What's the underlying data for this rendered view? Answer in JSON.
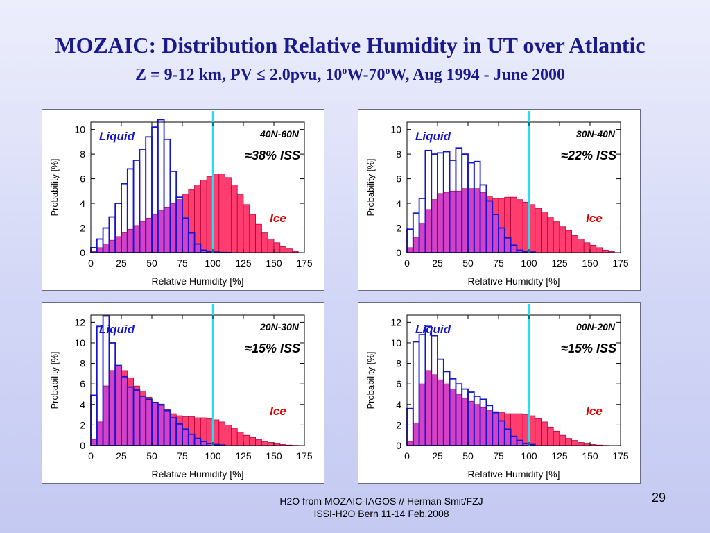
{
  "slide": {
    "title": "MOZAIC: Distribution Relative Humidity in UT over Atlantic",
    "subtitle_parts": {
      "a": "Z = 9-12 km, PV ≤ 2.0pvu, 10",
      "deg1": "o",
      "b": "W-70",
      "deg2": "o",
      "c": "W, Aug 1994 - June 2000"
    },
    "footer_line1": "H2O from MOZAIC-IAGOS // Herman Smit/FZJ",
    "footer_line2": "ISSI-H2O Bern 11-14 Feb.2008",
    "page_number": "29"
  },
  "colors": {
    "liquid_outline": "#1515cc",
    "ice_fill": "#ff3d6e",
    "overlap_fill": "#d640c4",
    "ice_edge": "#b0003a",
    "threshold_line": "#22e0f0",
    "label_liquid": "#1515cc",
    "label_ice": "#e00000"
  },
  "chart_data": [
    {
      "type": "bar",
      "region": "40N-60N",
      "iss_label": "≈38% ISS",
      "liquid_label": "Liquid",
      "ice_label": "Ice",
      "xlabel": "Relative Humidity [%]",
      "ylabel": "Probability [%]",
      "xlim": [
        0,
        175
      ],
      "ylim": [
        0,
        10.6
      ],
      "x_ticks": [
        0,
        25,
        50,
        75,
        100,
        125,
        150,
        175
      ],
      "y_ticks": [
        0,
        2,
        4,
        6,
        8,
        10
      ],
      "threshold_x": 100,
      "bin_width": 5,
      "series": [
        {
          "name": "Liquid",
          "values": [
            0.4,
            1.1,
            2.0,
            2.9,
            4.0,
            5.6,
            6.8,
            7.5,
            8.4,
            9.4,
            10.2,
            10.8,
            9.2,
            6.6,
            4.5,
            2.8,
            1.6,
            0.7,
            0.2,
            0.1,
            0.05,
            0.02,
            0.01,
            0,
            0,
            0,
            0,
            0,
            0,
            0,
            0,
            0,
            0,
            0,
            0
          ]
        },
        {
          "name": "Ice",
          "values": [
            0.1,
            0.4,
            0.7,
            1.0,
            1.3,
            1.6,
            1.9,
            2.2,
            2.5,
            2.8,
            3.1,
            3.4,
            3.7,
            4.0,
            4.3,
            4.7,
            5.1,
            5.5,
            5.9,
            6.2,
            6.4,
            6.4,
            6.1,
            5.5,
            4.7,
            3.9,
            3.1,
            2.3,
            1.6,
            1.1,
            0.8,
            0.5,
            0.3,
            0.1,
            0
          ]
        }
      ]
    },
    {
      "type": "bar",
      "region": "30N-40N",
      "iss_label": "≈22% ISS",
      "liquid_label": "Liquid",
      "ice_label": "Ice",
      "xlabel": "Relative Humidity [%]",
      "ylabel": "Probability [%]",
      "xlim": [
        0,
        175
      ],
      "ylim": [
        0,
        10.6
      ],
      "x_ticks": [
        0,
        25,
        50,
        75,
        100,
        125,
        150,
        175
      ],
      "y_ticks": [
        0,
        2,
        4,
        6,
        8,
        10
      ],
      "threshold_x": 100,
      "bin_width": 5,
      "series": [
        {
          "name": "Liquid",
          "values": [
            1.9,
            3.2,
            4.4,
            8.3,
            8.0,
            8.1,
            8.2,
            7.5,
            8.5,
            8.0,
            7.3,
            7.4,
            5.5,
            4.2,
            3.1,
            2.0,
            1.2,
            0.6,
            0.2,
            0.1,
            0.05,
            0,
            0,
            0,
            0,
            0,
            0,
            0,
            0,
            0,
            0,
            0,
            0,
            0,
            0
          ]
        },
        {
          "name": "Ice",
          "values": [
            0.4,
            1.2,
            2.4,
            3.5,
            4.3,
            4.8,
            4.9,
            5.0,
            5.0,
            5.2,
            5.2,
            5.2,
            4.9,
            4.6,
            4.4,
            4.4,
            4.5,
            4.5,
            4.3,
            4.1,
            3.9,
            3.6,
            3.3,
            2.9,
            2.5,
            2.1,
            1.8,
            1.4,
            1.1,
            0.8,
            0.6,
            0.4,
            0.2,
            0.1,
            0
          ]
        }
      ]
    },
    {
      "type": "bar",
      "region": "20N-30N",
      "iss_label": "≈15% ISS",
      "liquid_label": "Liquid",
      "ice_label": "Ice",
      "xlabel": "Relative Humidity [%]",
      "ylabel": "Probability [%]",
      "xlim": [
        0,
        175
      ],
      "ylim": [
        0,
        12.7
      ],
      "x_ticks": [
        0,
        25,
        50,
        75,
        100,
        125,
        150,
        175
      ],
      "y_ticks": [
        0,
        2,
        4,
        6,
        8,
        10,
        12
      ],
      "threshold_x": 100,
      "bin_width": 5,
      "series": [
        {
          "name": "Liquid",
          "values": [
            4.9,
            11.6,
            12.6,
            10.0,
            7.8,
            6.7,
            5.7,
            5.4,
            4.8,
            4.5,
            4.2,
            4.0,
            3.4,
            2.7,
            2.1,
            1.6,
            1.1,
            0.7,
            0.4,
            0.2,
            0.1,
            0.05,
            0,
            0,
            0,
            0,
            0,
            0,
            0,
            0,
            0,
            0,
            0,
            0,
            0
          ]
        },
        {
          "name": "Ice",
          "values": [
            0.6,
            2.3,
            5.8,
            7.3,
            7.8,
            7.3,
            6.6,
            5.8,
            5.3,
            4.7,
            4.2,
            3.9,
            3.5,
            3.1,
            2.9,
            2.8,
            2.8,
            2.7,
            2.7,
            2.6,
            2.5,
            2.3,
            2.0,
            1.7,
            1.3,
            1.0,
            0.8,
            0.6,
            0.4,
            0.3,
            0.2,
            0.1,
            0.05,
            0.02,
            0
          ]
        }
      ]
    },
    {
      "type": "bar",
      "region": "00N-20N",
      "iss_label": "≈15% ISS",
      "liquid_label": "Liquid",
      "ice_label": "Ice",
      "xlabel": "Relative Humidity [%]",
      "ylabel": "Probability [%]",
      "xlim": [
        0,
        175
      ],
      "ylim": [
        0,
        12.7
      ],
      "x_ticks": [
        0,
        25,
        50,
        75,
        100,
        125,
        150,
        175
      ],
      "y_ticks": [
        0,
        2,
        4,
        6,
        8,
        10,
        12
      ],
      "threshold_x": 100,
      "bin_width": 5,
      "series": [
        {
          "name": "Liquid",
          "values": [
            3.6,
            10.1,
            10.8,
            11.6,
            10.7,
            8.4,
            7.2,
            6.5,
            6.0,
            5.5,
            5.2,
            4.8,
            4.5,
            3.9,
            3.2,
            2.4,
            1.6,
            0.9,
            0.5,
            0.2,
            0.1,
            0,
            0,
            0,
            0,
            0,
            0,
            0,
            0,
            0,
            0,
            0,
            0,
            0,
            0
          ]
        },
        {
          "name": "Ice",
          "values": [
            0.4,
            2.2,
            6.0,
            7.3,
            6.9,
            6.4,
            6.0,
            5.5,
            5.0,
            4.6,
            4.3,
            4.0,
            3.7,
            3.4,
            3.3,
            3.2,
            3.1,
            3.1,
            3.1,
            3.0,
            2.9,
            2.6,
            2.3,
            1.8,
            1.4,
            1.0,
            0.7,
            0.5,
            0.3,
            0.2,
            0.1,
            0.05,
            0.02,
            0,
            0
          ]
        }
      ]
    }
  ]
}
